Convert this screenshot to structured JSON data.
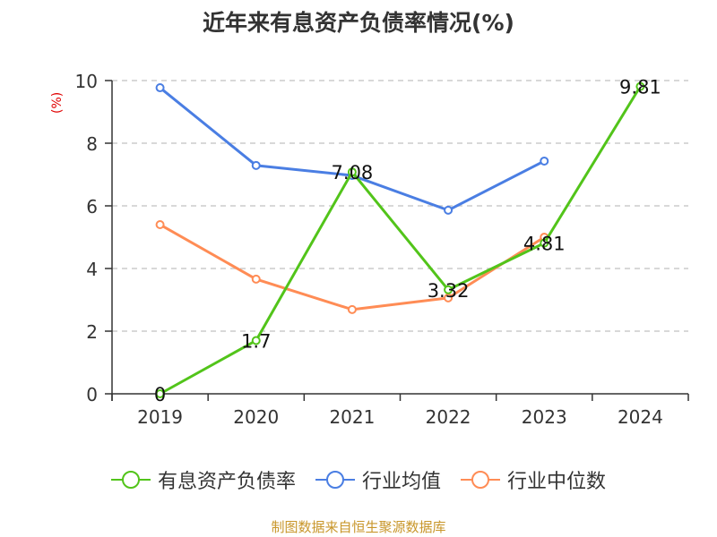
{
  "title": "近年来有息资产负债率情况(%)",
  "y_unit_label": "(%)",
  "legend": [
    {
      "label": "有息资产负债率",
      "color": "#52c41a"
    },
    {
      "label": "行业均值",
      "color": "#4a7ee3"
    },
    {
      "label": "行业中位数",
      "color": "#ff8c55"
    }
  ],
  "source": "制图数据来自恒生聚源数据库",
  "chart_data": {
    "type": "line",
    "title": "近年来有息资产负债率情况(%)",
    "xlabel": "",
    "ylabel": "(%)",
    "categories": [
      "2019",
      "2020",
      "2021",
      "2022",
      "2023",
      "2024"
    ],
    "yticks": [
      0,
      2,
      4,
      6,
      8,
      10
    ],
    "ylim": [
      0,
      10
    ],
    "grid": true,
    "legend_position": "bottom",
    "series": [
      {
        "name": "有息资产负债率",
        "color": "#52c41a",
        "values": [
          0,
          1.7,
          7.08,
          3.32,
          4.81,
          9.81
        ],
        "labels": [
          "0",
          "1.7",
          "7.08",
          "3.32",
          "4.81",
          "9.81"
        ]
      },
      {
        "name": "行业均值",
        "color": "#4a7ee3",
        "values": [
          9.77,
          7.29,
          6.97,
          5.86,
          7.43,
          null
        ]
      },
      {
        "name": "行业中位数",
        "color": "#ff8c55",
        "values": [
          5.4,
          3.66,
          2.69,
          3.06,
          5.0,
          null
        ]
      }
    ]
  }
}
